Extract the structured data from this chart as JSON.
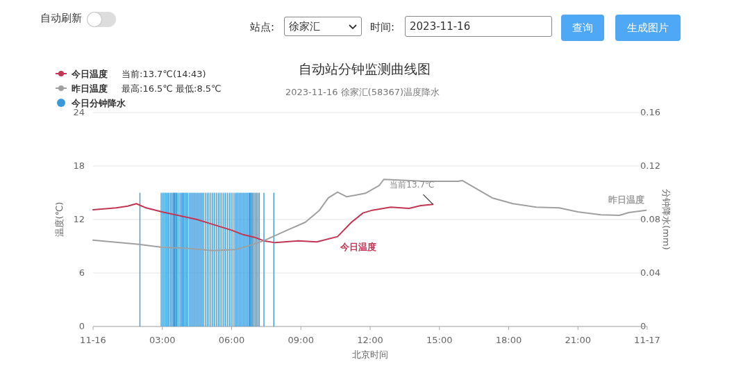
{
  "chart_data": {
    "type": "line",
    "title": "自动站分钟监测曲线图",
    "subtitle": "2023-11-16 徐家汇(58367)温度降水",
    "xlabel": "北京时间",
    "ylabel": "温度(℃)",
    "y2label": "分钟降水(mm)",
    "xlim": [
      0,
      24
    ],
    "xticks": [
      {
        "value": 0,
        "label": "11-16"
      },
      {
        "value": 3,
        "label": "03:00"
      },
      {
        "value": 6,
        "label": "06:00"
      },
      {
        "value": 9,
        "label": "09:00"
      },
      {
        "value": 12,
        "label": "12:00"
      },
      {
        "value": 15,
        "label": "15:00"
      },
      {
        "value": 18,
        "label": "18:00"
      },
      {
        "value": 21,
        "label": "21:00"
      },
      {
        "value": 24,
        "label": "11-17"
      }
    ],
    "ylim": [
      0,
      24
    ],
    "yticks": [
      0,
      6,
      12,
      18,
      24
    ],
    "y2lim": [
      0,
      0.16
    ],
    "y2ticks": [
      0,
      0.04,
      0.08,
      0.12,
      0.16
    ],
    "grid": "y",
    "legend": "top left",
    "series": [
      {
        "name": "今日温度",
        "color": "#c23552",
        "x": [
          0,
          1,
          1.5,
          1.88,
          2.3,
          2.98,
          3.98,
          4.5,
          5.0,
          6.0,
          6.5,
          7.0,
          7.39,
          7.89,
          8.89,
          9.69,
          10.59,
          11.19,
          11.69,
          12.09,
          12.89,
          13.69,
          14.19,
          14.72
        ],
        "values": [
          13.1,
          13.3,
          13.5,
          13.77,
          13.3,
          12.86,
          12.29,
          12.0,
          11.6,
          10.8,
          10.3,
          10.0,
          9.61,
          9.4,
          9.61,
          9.48,
          10.08,
          11.69,
          12.73,
          13.04,
          13.38,
          13.25,
          13.56,
          13.7
        ]
      },
      {
        "name": "昨日温度",
        "color": "#a0a0a0",
        "x": [
          0,
          1.98,
          2.98,
          3.98,
          5.18,
          6.18,
          6.78,
          7.39,
          8.39,
          9.19,
          9.79,
          10.19,
          10.59,
          10.99,
          11.79,
          12.39,
          12.59,
          14.39,
          15.8,
          15.99,
          17.29,
          18.19,
          19.19,
          20.19,
          20.99,
          21.99,
          22.8,
          23.2,
          23.95
        ],
        "values": [
          9.69,
          9.22,
          8.89,
          8.78,
          8.52,
          8.63,
          9.09,
          9.61,
          10.78,
          11.69,
          12.99,
          14.42,
          15.07,
          14.55,
          14.94,
          15.8,
          16.5,
          16.29,
          16.29,
          16.37,
          14.42,
          13.77,
          13.38,
          13.3,
          12.86,
          12.52,
          12.47,
          12.78,
          13.04
        ]
      },
      {
        "name": "今日分钟降水",
        "type": "bar",
        "axis": "y2",
        "color": "#3a9ad9",
        "x": [
          2.03,
          2.95,
          3.02,
          3.08,
          3.15,
          3.21,
          3.27,
          3.34,
          3.4,
          3.46,
          3.5,
          3.54,
          3.58,
          3.62,
          3.68,
          3.76,
          3.82,
          3.87,
          3.92,
          3.98,
          4.04,
          4.1,
          4.18,
          4.24,
          4.3,
          4.36,
          4.42,
          4.48,
          4.54,
          4.6,
          4.66,
          4.72,
          4.78,
          4.86,
          4.94,
          5.02,
          5.1,
          5.18,
          5.26,
          5.34,
          5.42,
          5.5,
          5.58,
          5.66,
          5.74,
          5.82,
          5.9,
          5.98,
          6.06,
          6.14,
          6.2,
          6.26,
          6.32,
          6.38,
          6.44,
          6.5,
          6.56,
          6.62,
          6.68,
          6.74,
          6.78,
          6.82,
          6.86,
          6.9,
          6.96,
          7.02,
          7.08,
          7.14,
          7.2,
          7.4,
          7.83
        ],
        "values": [
          0.1,
          0.1,
          0.1,
          0.1,
          0.1,
          0.1,
          0.1,
          0.1,
          0.1,
          0.1,
          0.1,
          0.1,
          0.1,
          0.1,
          0.1,
          0.1,
          0.1,
          0.1,
          0.1,
          0.1,
          0.1,
          0.1,
          0.1,
          0.1,
          0.1,
          0.1,
          0.1,
          0.1,
          0.1,
          0.1,
          0.1,
          0.1,
          0.1,
          0.1,
          0.1,
          0.1,
          0.1,
          0.1,
          0.1,
          0.1,
          0.1,
          0.1,
          0.1,
          0.1,
          0.1,
          0.1,
          0.1,
          0.1,
          0.1,
          0.1,
          0.1,
          0.1,
          0.1,
          0.1,
          0.1,
          0.1,
          0.1,
          0.1,
          0.1,
          0.1,
          0.1,
          0.1,
          0.1,
          0.1,
          0.1,
          0.1,
          0.1,
          0.1,
          0.1,
          0.1,
          0.1
        ]
      }
    ],
    "annotations": [
      "自动刷新",
      "站点:",
      "徐家汇",
      "时间:",
      "2023-11-16",
      "查询",
      "生成图片",
      "当前:13.7℃(14:43)",
      "最高:16.5℃ 最低:8.5℃",
      {
        "text": "当前13.7℃",
        "x": 14.72,
        "y": 13.7
      }
    ]
  }
}
